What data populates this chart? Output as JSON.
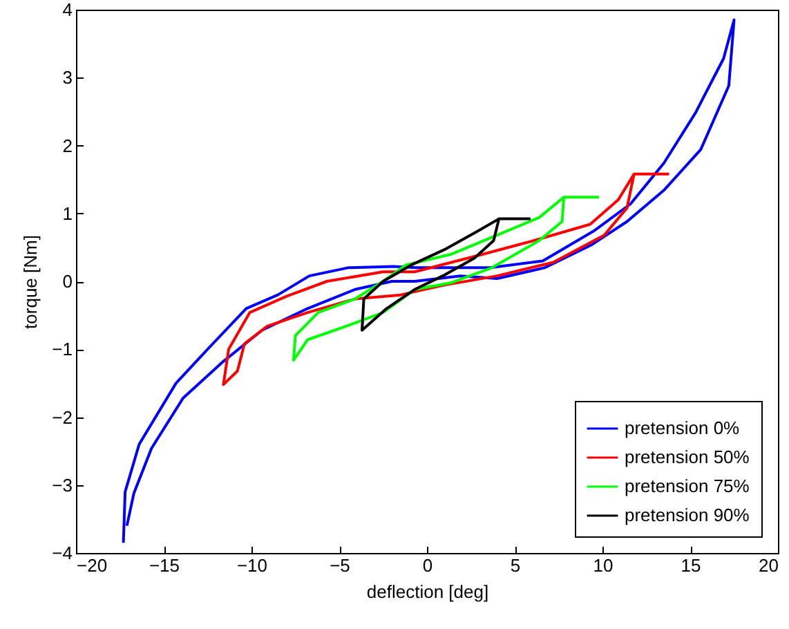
{
  "chart_data": {
    "type": "line",
    "xlabel": "deflection  [deg]",
    "ylabel": "torque [Nm]",
    "xlim": [
      -20,
      20
    ],
    "xticks": [
      -20,
      -15,
      -10,
      -5,
      0,
      5,
      10,
      15,
      20
    ],
    "ylim": [
      -4,
      4
    ],
    "yticks": [
      -4,
      -3,
      -2,
      -1,
      0,
      1,
      2,
      3,
      4
    ],
    "grid": false,
    "legend": "bottom right",
    "marker": "none",
    "line_style": "solid",
    "series": [
      {
        "name": "pretension 0%",
        "color": "#0000ff",
        "x": [
          -17.3,
          -17.2,
          -16.4,
          -14.3,
          -12.5,
          -10.3,
          -8.5,
          -6.7,
          -4.5,
          -1.9,
          -0.6,
          3.6,
          6.6,
          9.5,
          11.6,
          13.5,
          15.3,
          16.9,
          17.5,
          17.2,
          15.6,
          13.5,
          11.4,
          9.4,
          6.7,
          4.0,
          1.9,
          -0.7,
          -2.0,
          -4.1,
          -6.8,
          -9.4,
          -11.7,
          -13.9,
          -15.7,
          -16.7,
          -17.1
        ],
        "values": [
          -3.85,
          -3.1,
          -2.4,
          -1.5,
          -1.0,
          -0.4,
          -0.2,
          0.08,
          0.2,
          0.22,
          0.2,
          0.2,
          0.3,
          0.74,
          1.14,
          1.74,
          2.48,
          3.28,
          3.85,
          2.88,
          1.94,
          1.34,
          0.88,
          0.54,
          0.2,
          0.04,
          0.08,
          0,
          0,
          -0.12,
          -0.4,
          -0.72,
          -1.2,
          -1.72,
          -2.46,
          -3.12,
          -3.6
        ]
      },
      {
        "name": "pretension 50%",
        "color": "#ff0000",
        "x": [
          13.8,
          11.8,
          11.4,
          10.1,
          7.2,
          4.0,
          0.9,
          -1.5,
          -4.1,
          -6.8,
          -9.1,
          -10.4,
          -10.8,
          -11.6,
          -11.3,
          -10.1,
          -8.0,
          -5.7,
          -2.5,
          -0.7,
          3.2,
          6.1,
          9.3,
          10.9,
          11.8
        ],
        "values": [
          1.58,
          1.58,
          1.08,
          0.68,
          0.28,
          0.08,
          -0.06,
          -0.2,
          -0.26,
          -0.46,
          -0.66,
          -0.92,
          -1.32,
          -1.52,
          -1.0,
          -0.46,
          -0.22,
          0,
          0.14,
          0.14,
          0.4,
          0.6,
          0.84,
          1.2,
          1.58
        ]
      },
      {
        "name": "pretension 75%",
        "color": "#00ff00",
        "x": [
          9.8,
          7.8,
          7.7,
          6.4,
          3.7,
          1.4,
          -0.7,
          -2.5,
          -4.6,
          -6.8,
          -7.6,
          -7.5,
          -6.2,
          -4.1,
          -2.5,
          -1.2,
          1.4,
          4.0,
          6.4,
          7.8
        ],
        "values": [
          1.24,
          1.24,
          0.88,
          0.6,
          0.2,
          -0.02,
          -0.12,
          -0.46,
          -0.66,
          -0.86,
          -1.16,
          -0.8,
          -0.46,
          -0.26,
          0,
          0.24,
          0.4,
          0.68,
          0.94,
          1.24
        ]
      },
      {
        "name": "pretension 90%",
        "color": "#000000",
        "x": [
          5.9,
          4.1,
          3.8,
          2.7,
          0.9,
          -0.7,
          -2.3,
          -3.7,
          -3.6,
          -2.5,
          -0.9,
          1.1,
          2.9,
          4.1
        ],
        "values": [
          0.92,
          0.92,
          0.6,
          0.34,
          0.08,
          -0.12,
          -0.4,
          -0.72,
          -0.26,
          0,
          0.24,
          0.48,
          0.74,
          0.92
        ]
      }
    ]
  }
}
